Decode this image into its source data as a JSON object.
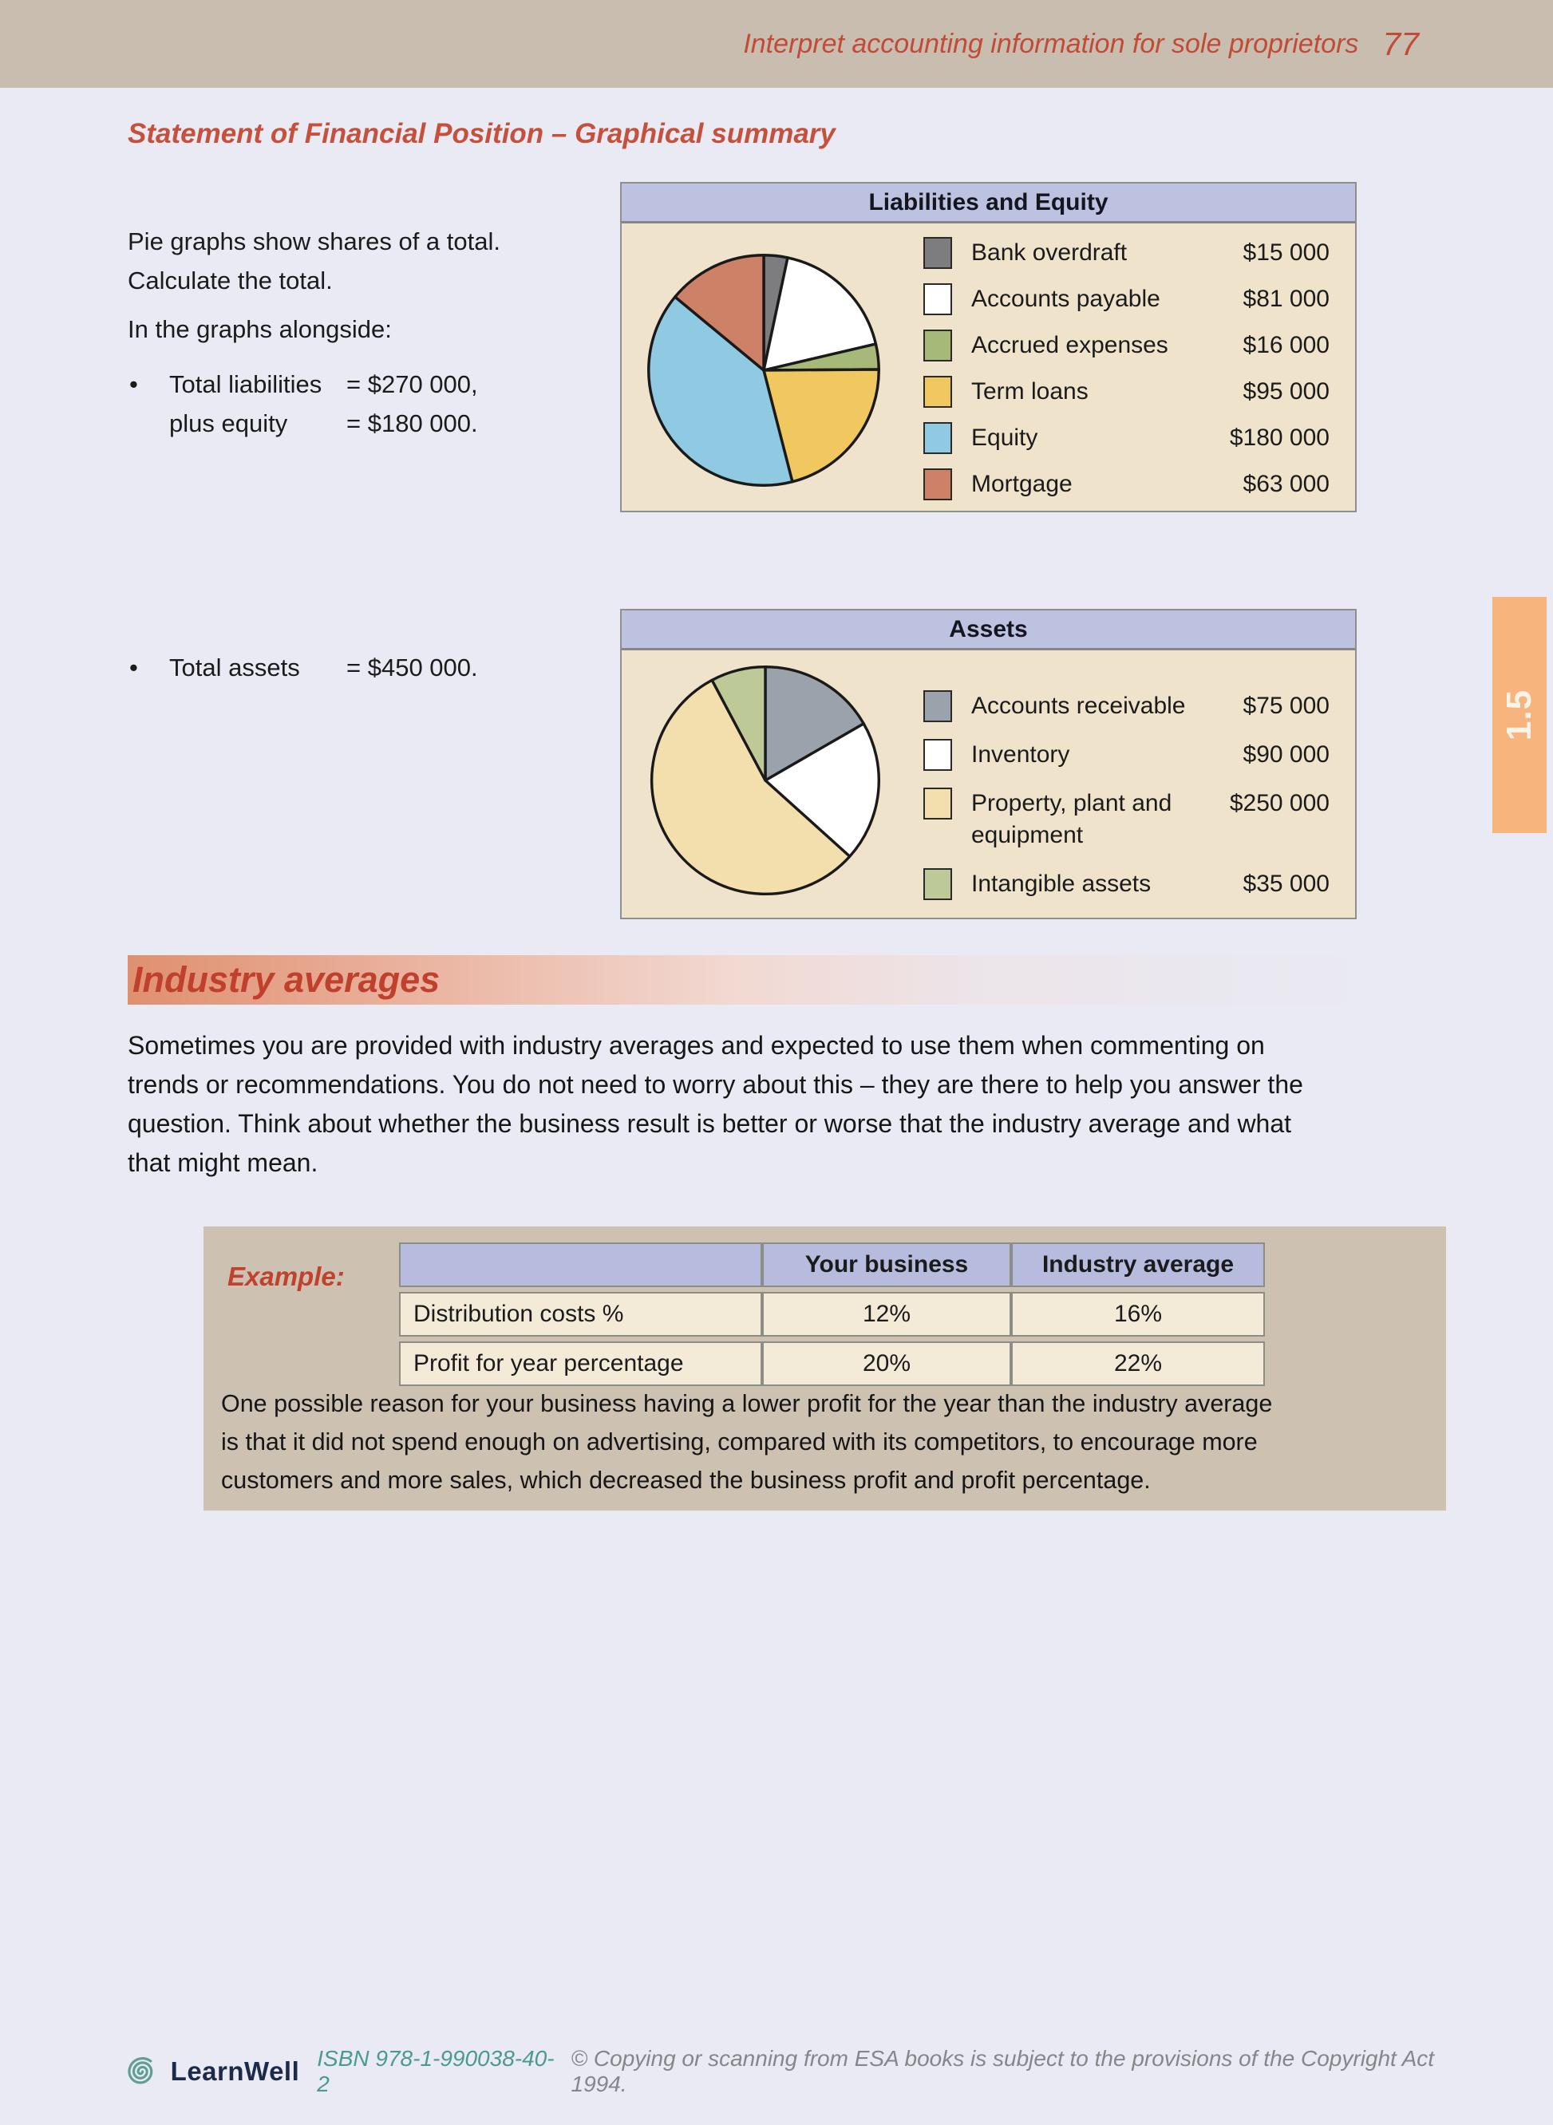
{
  "page": {
    "header_title": "Interpret accounting information for sole proprietors",
    "page_number": "77"
  },
  "sfp": {
    "heading": "Statement of Financial Position – Graphical summary",
    "intro": "Pie graphs show shares of a total.\nCalculate the total.",
    "alongside": "In the graphs alongside:",
    "bullet_glyph": "•",
    "bullets": {
      "b1_label": "Total liabilities",
      "b1_value": "= $270 000,",
      "b1b_label": "plus equity",
      "b1b_value": "= $180 000.",
      "b2_label": "Total assets",
      "b2_value": "= $450 000."
    }
  },
  "chart_data": [
    {
      "type": "pie",
      "title": "Liabilities and Equity",
      "categories": [
        "Bank overdraft",
        "Accounts payable",
        "Accrued expenses",
        "Term loans",
        "Equity",
        "Mortgage"
      ],
      "values": [
        15000,
        81000,
        16000,
        95000,
        180000,
        63000
      ],
      "labels_display": [
        "$15 000",
        "$81 000",
        "$16 000",
        "$95 000",
        "$180 000",
        "$63 000"
      ],
      "colors": [
        "#7d7d7f",
        "#ffffff",
        "#a7b979",
        "#f1c75f",
        "#8fc9e2",
        "#cd8166"
      ],
      "total": 450000,
      "start_angle_deg": 0,
      "direction": "clockwise",
      "legend_position": "right"
    },
    {
      "type": "pie",
      "title": "Assets",
      "categories": [
        "Accounts receivable",
        "Inventory",
        "Property, plant and equipment",
        "Intangible assets"
      ],
      "values": [
        75000,
        90000,
        250000,
        35000
      ],
      "labels_display": [
        "$75 000",
        "$90 000",
        "$250 000",
        "$35 000"
      ],
      "colors": [
        "#9aa2ab",
        "#ffffff",
        "#f3dfad",
        "#bdca97"
      ],
      "total": 450000,
      "start_angle_deg": 0,
      "direction": "clockwise",
      "legend_position": "right"
    }
  ],
  "industry": {
    "heading": "Industry averages",
    "paragraph": "Sometimes you are provided with industry averages and expected to use them when commenting on\ntrends or recommendations. You do not need to worry about this – they are there to help you answer the\nquestion. Think about whether the business result is better or worse that the industry average and what\nthat might mean."
  },
  "example": {
    "label": "Example:",
    "table": {
      "headers": [
        "",
        "Your business",
        "Industry average"
      ],
      "rows": [
        [
          "Distribution costs %",
          "12%",
          "16%"
        ],
        [
          "Profit for year percentage",
          "20%",
          "22%"
        ]
      ]
    },
    "note": "One possible reason for your business having a lower profit for the year than the industry average\nis that it did not spend enough on advertising, compared with its competitors, to encourage more\ncustomers and more sales, which decreased the business profit and profit percentage."
  },
  "side_tab": {
    "label": "1.5"
  },
  "footer": {
    "brand": "LearnWell",
    "isbn": "ISBN 978-1-990038-40-2",
    "copyright": "© Copying or scanning from ESA books is subject to the provisions of the Copyright Act 1994."
  },
  "colors": {
    "page_background": "#e9eaf3",
    "top_band": "#c9bdb0",
    "heading_red": "#c5513c",
    "chart_header": "#bdc2e1",
    "chart_body": "#efe3cb",
    "example_box": "#cdc2b2",
    "table_header": "#b7bcde",
    "table_cell": "#f3ebd8",
    "side_tab_orange": "#f7b57d",
    "footer_teal": "#4b9a8b",
    "footer_navy": "#1d2b4a"
  }
}
